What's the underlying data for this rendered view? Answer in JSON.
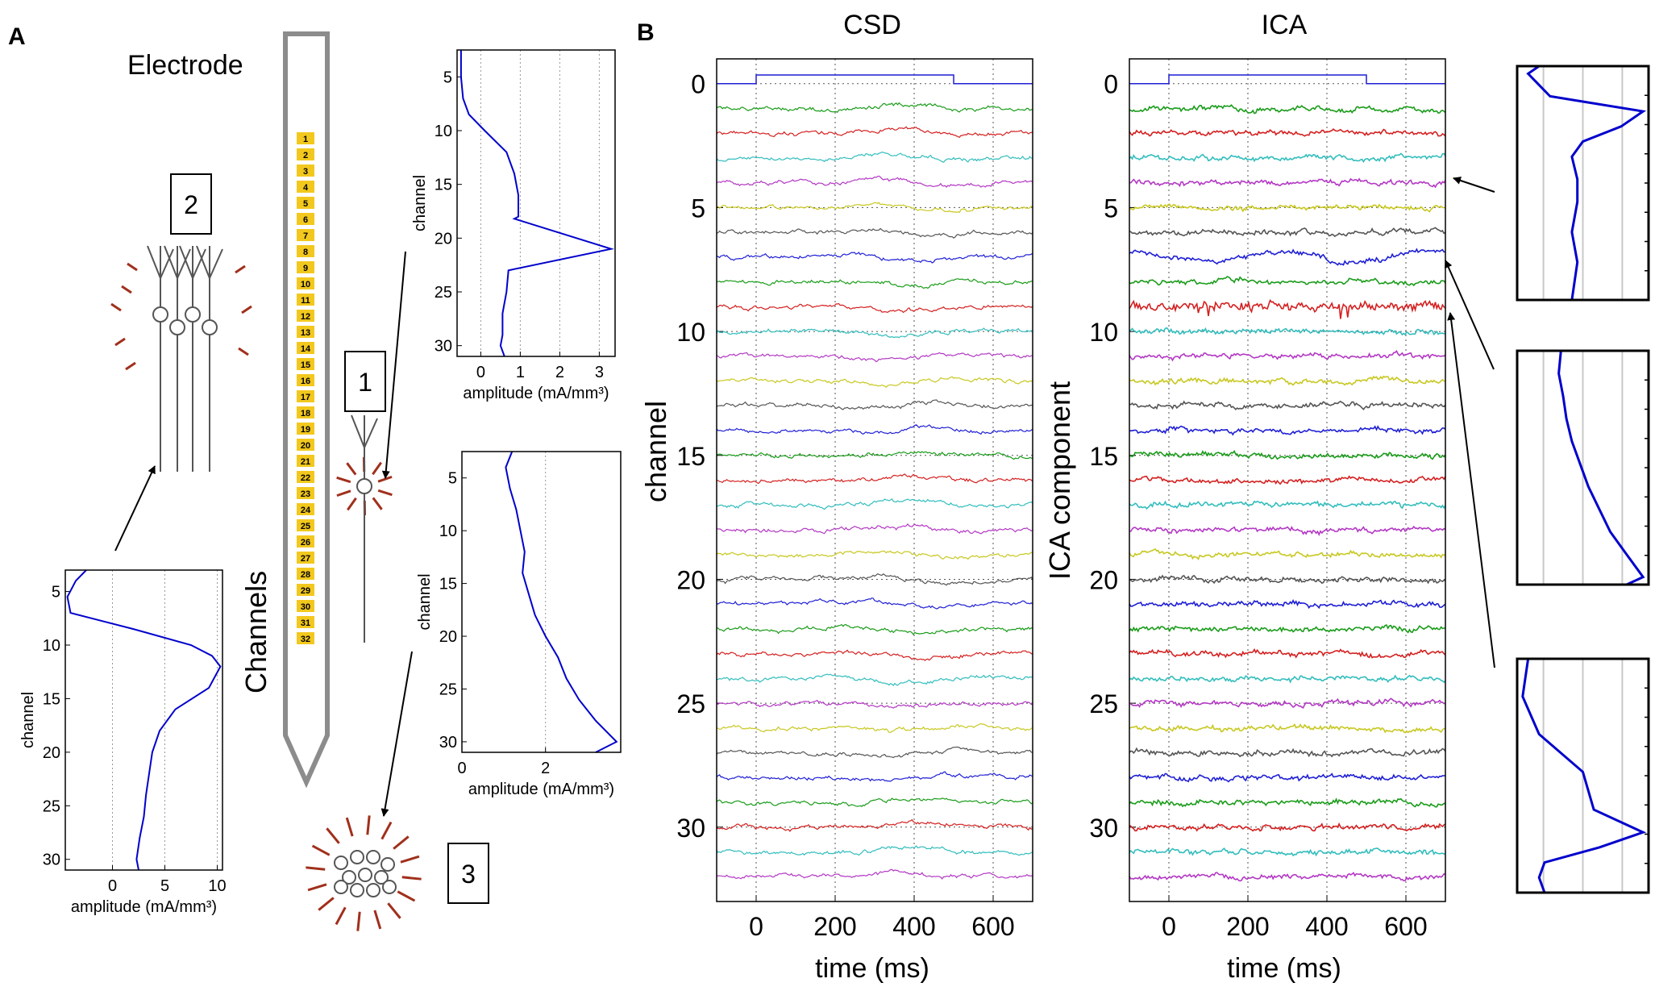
{
  "panel_labels": {
    "a": "A",
    "b": "B"
  },
  "panel_a": {
    "electrode_label": "Electrode",
    "channels_label": "Channels",
    "channel_numbers": [
      "1",
      "2",
      "3",
      "4",
      "5",
      "6",
      "7",
      "8",
      "9",
      "10",
      "11",
      "12",
      "13",
      "14",
      "15",
      "16",
      "17",
      "18",
      "19",
      "20",
      "21",
      "22",
      "23",
      "24",
      "25",
      "26",
      "27",
      "28",
      "29",
      "30",
      "31",
      "32"
    ],
    "box_labels": [
      "1",
      "2",
      "3"
    ],
    "colors": {
      "electrode": "#8c8c8c",
      "channel_pad": "#f2c81e",
      "neuron_ray": "#a0301c",
      "neuron": "#555555",
      "profile": "#0000cc"
    }
  },
  "panel_b": {
    "csd_title": "CSD",
    "ica_title": "ICA",
    "csd_ylabel": "channel",
    "ica_ylabel": "ICA component",
    "xlabel": "time (ms)",
    "trace_colors": [
      "#1a9c1a",
      "#d42020",
      "#33bdbd",
      "#b338c4",
      "#c8c823",
      "#555555",
      "#1f1fd4"
    ],
    "stim_color": "#1f1fd4"
  },
  "chart_data": [
    {
      "id": "profile-2",
      "type": "line",
      "title": "",
      "xlabel": "amplitude (mA/mm³)",
      "ylabel": "channel",
      "xlim": [
        -4.5,
        10.5
      ],
      "ylim": [
        31,
        3
      ],
      "xticks": [
        0,
        5,
        10
      ],
      "yticks": [
        5,
        10,
        15,
        20,
        25,
        30
      ],
      "x": [
        -2.5,
        -3.5,
        -4.3,
        -4.0,
        2.0,
        7.5,
        9.5,
        10.3,
        9.2,
        6.0,
        4.5,
        3.8,
        3.5,
        3.2,
        3.0,
        2.8,
        2.6,
        2.3,
        2.5
      ],
      "y": [
        3,
        4,
        5.5,
        7,
        8.5,
        10,
        11,
        12,
        14,
        16,
        18,
        20,
        22,
        24,
        26,
        27,
        28,
        30,
        31
      ]
    },
    {
      "id": "profile-1",
      "type": "line",
      "title": "",
      "xlabel": "amplitude (mA/mm³)",
      "ylabel": "channel",
      "xlim": [
        -0.6,
        3.4
      ],
      "ylim": [
        31,
        2.5
      ],
      "xticks": [
        0,
        1,
        2,
        3
      ],
      "yticks": [
        5,
        10,
        15,
        20,
        25,
        30
      ],
      "x": [
        -0.5,
        -0.5,
        -0.45,
        -0.3,
        0.1,
        0.65,
        0.85,
        0.95,
        0.95,
        0.85,
        3.3,
        0.7,
        0.65,
        0.55,
        0.55,
        0.55,
        0.5,
        0.6
      ],
      "y": [
        2.5,
        5,
        7,
        8.5,
        10,
        12,
        14,
        16,
        18,
        18.2,
        21,
        23,
        25,
        27,
        28,
        29,
        30,
        31
      ]
    },
    {
      "id": "profile-3",
      "type": "line",
      "title": "",
      "xlabel": "amplitude (mA/mm³)",
      "ylabel": "channel",
      "xlim": [
        0,
        3.8
      ],
      "ylim": [
        31,
        2.5
      ],
      "xticks": [
        0,
        2
      ],
      "yticks": [
        5,
        10,
        15,
        20,
        25,
        30
      ],
      "x": [
        1.2,
        1.05,
        1.15,
        1.3,
        1.4,
        1.5,
        1.45,
        1.6,
        1.75,
        2.0,
        2.3,
        2.5,
        2.8,
        3.2,
        3.7,
        3.2
      ],
      "y": [
        2.5,
        4,
        6,
        8,
        10,
        12,
        14,
        16,
        18,
        20,
        22,
        24,
        26,
        28,
        30,
        31
      ]
    },
    {
      "id": "csd-traces",
      "type": "line",
      "title": "CSD",
      "xlabel": "time (ms)",
      "ylabel": "channel",
      "xlim": [
        -100,
        700
      ],
      "ylim": [
        33,
        -1
      ],
      "xticks": [
        0,
        200,
        400,
        600
      ],
      "yticks": [
        0,
        5,
        10,
        15,
        20,
        25,
        30
      ],
      "n_traces": 32,
      "stimulus": {
        "start_ms": 0,
        "end_ms": 500
      }
    },
    {
      "id": "ica-traces",
      "type": "line",
      "title": "ICA",
      "xlabel": "time (ms)",
      "ylabel": "ICA component",
      "xlim": [
        -100,
        700
      ],
      "ylim": [
        33,
        -1
      ],
      "xticks": [
        0,
        200,
        400,
        600
      ],
      "yticks": [
        0,
        5,
        10,
        15,
        20,
        25,
        30
      ],
      "n_traces": 32,
      "stimulus": {
        "start_ms": 0,
        "end_ms": 500
      }
    },
    {
      "id": "ica-loading-4",
      "type": "line",
      "title": "",
      "xlabel": "",
      "ylabel": "",
      "xlim": [
        -0.2,
        1.0
      ],
      "ylim": [
        31,
        0
      ],
      "x": [
        0.0,
        -0.1,
        0.1,
        0.95,
        0.75,
        0.4,
        0.3,
        0.35,
        0.35,
        0.3,
        0.35,
        0.3
      ],
      "y": [
        0,
        1,
        4,
        6,
        8,
        10,
        12,
        15,
        18,
        22,
        26,
        31
      ]
    },
    {
      "id": "ica-loading-7",
      "type": "line",
      "title": "",
      "xlabel": "",
      "ylabel": "",
      "xlim": [
        -0.2,
        1.0
      ],
      "ylim": [
        31,
        0
      ],
      "x": [
        0.2,
        0.18,
        0.22,
        0.25,
        0.3,
        0.35,
        0.4,
        0.45,
        0.55,
        0.65,
        0.8,
        0.95,
        0.8
      ],
      "y": [
        0,
        3,
        6,
        9,
        12,
        14,
        16,
        18,
        21,
        24,
        27,
        30,
        31
      ]
    },
    {
      "id": "ica-loading-9",
      "type": "line",
      "title": "",
      "xlabel": "",
      "ylabel": "",
      "xlim": [
        -0.2,
        1.0
      ],
      "ylim": [
        31,
        0
      ],
      "x": [
        -0.1,
        -0.15,
        0.0,
        0.4,
        0.5,
        0.95,
        0.55,
        0.05,
        0.0,
        0.05
      ],
      "y": [
        0,
        5,
        10,
        15,
        20,
        23,
        25,
        27,
        29,
        31
      ]
    }
  ]
}
